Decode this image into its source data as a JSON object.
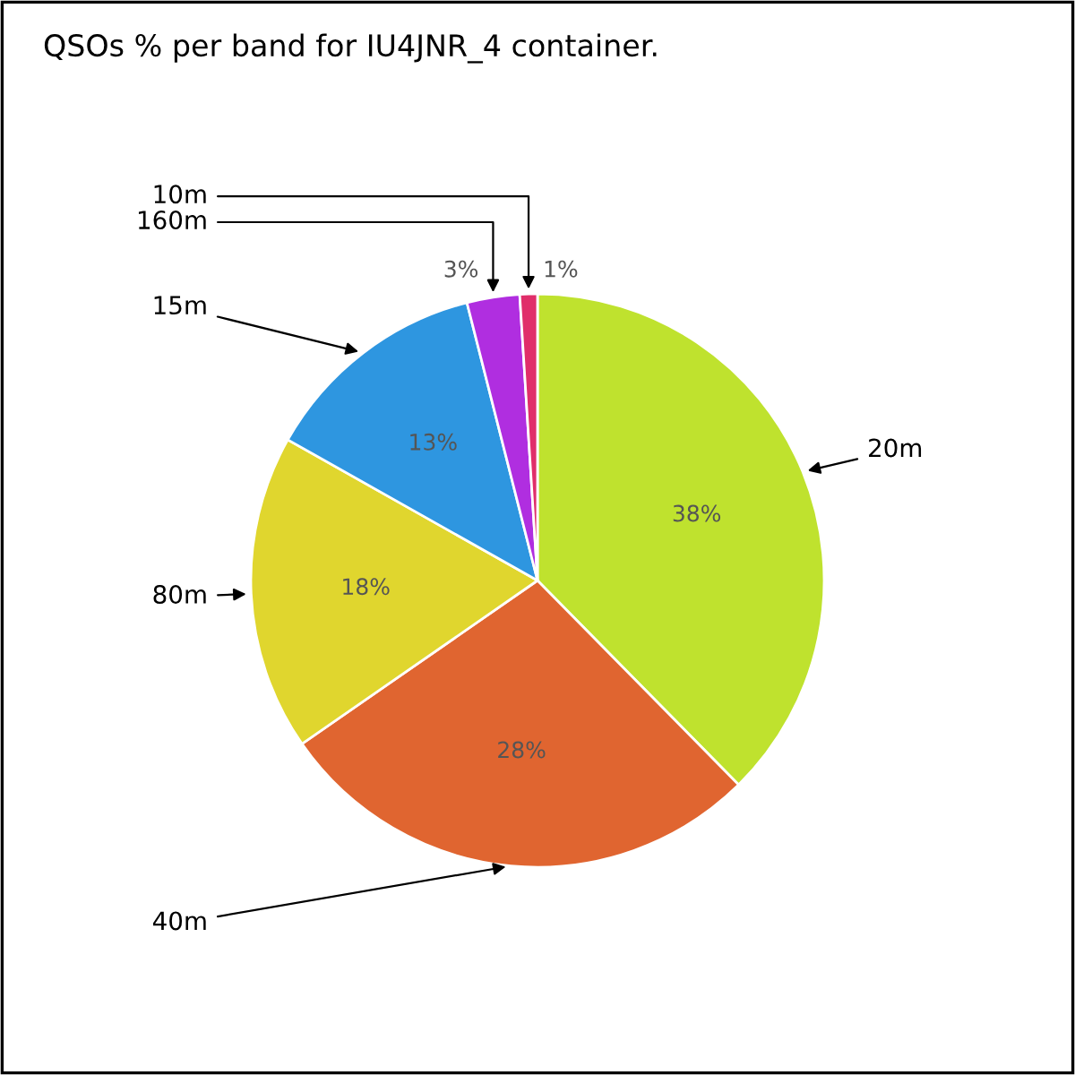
{
  "chart_data": {
    "type": "pie",
    "title": "QSOs % per band for IU4JNR_4 container.",
    "categories": [
      "20m",
      "40m",
      "80m",
      "15m",
      "160m",
      "10m"
    ],
    "values": [
      38,
      28,
      18,
      13,
      3,
      1
    ],
    "value_labels": [
      "38%",
      "28%",
      "18%",
      "13%",
      "3%",
      "1%"
    ],
    "colors": [
      "#bfe22e",
      "#e06530",
      "#e0d62e",
      "#2e96e0",
      "#b02ee0",
      "#e02e6a"
    ],
    "legend": false
  }
}
